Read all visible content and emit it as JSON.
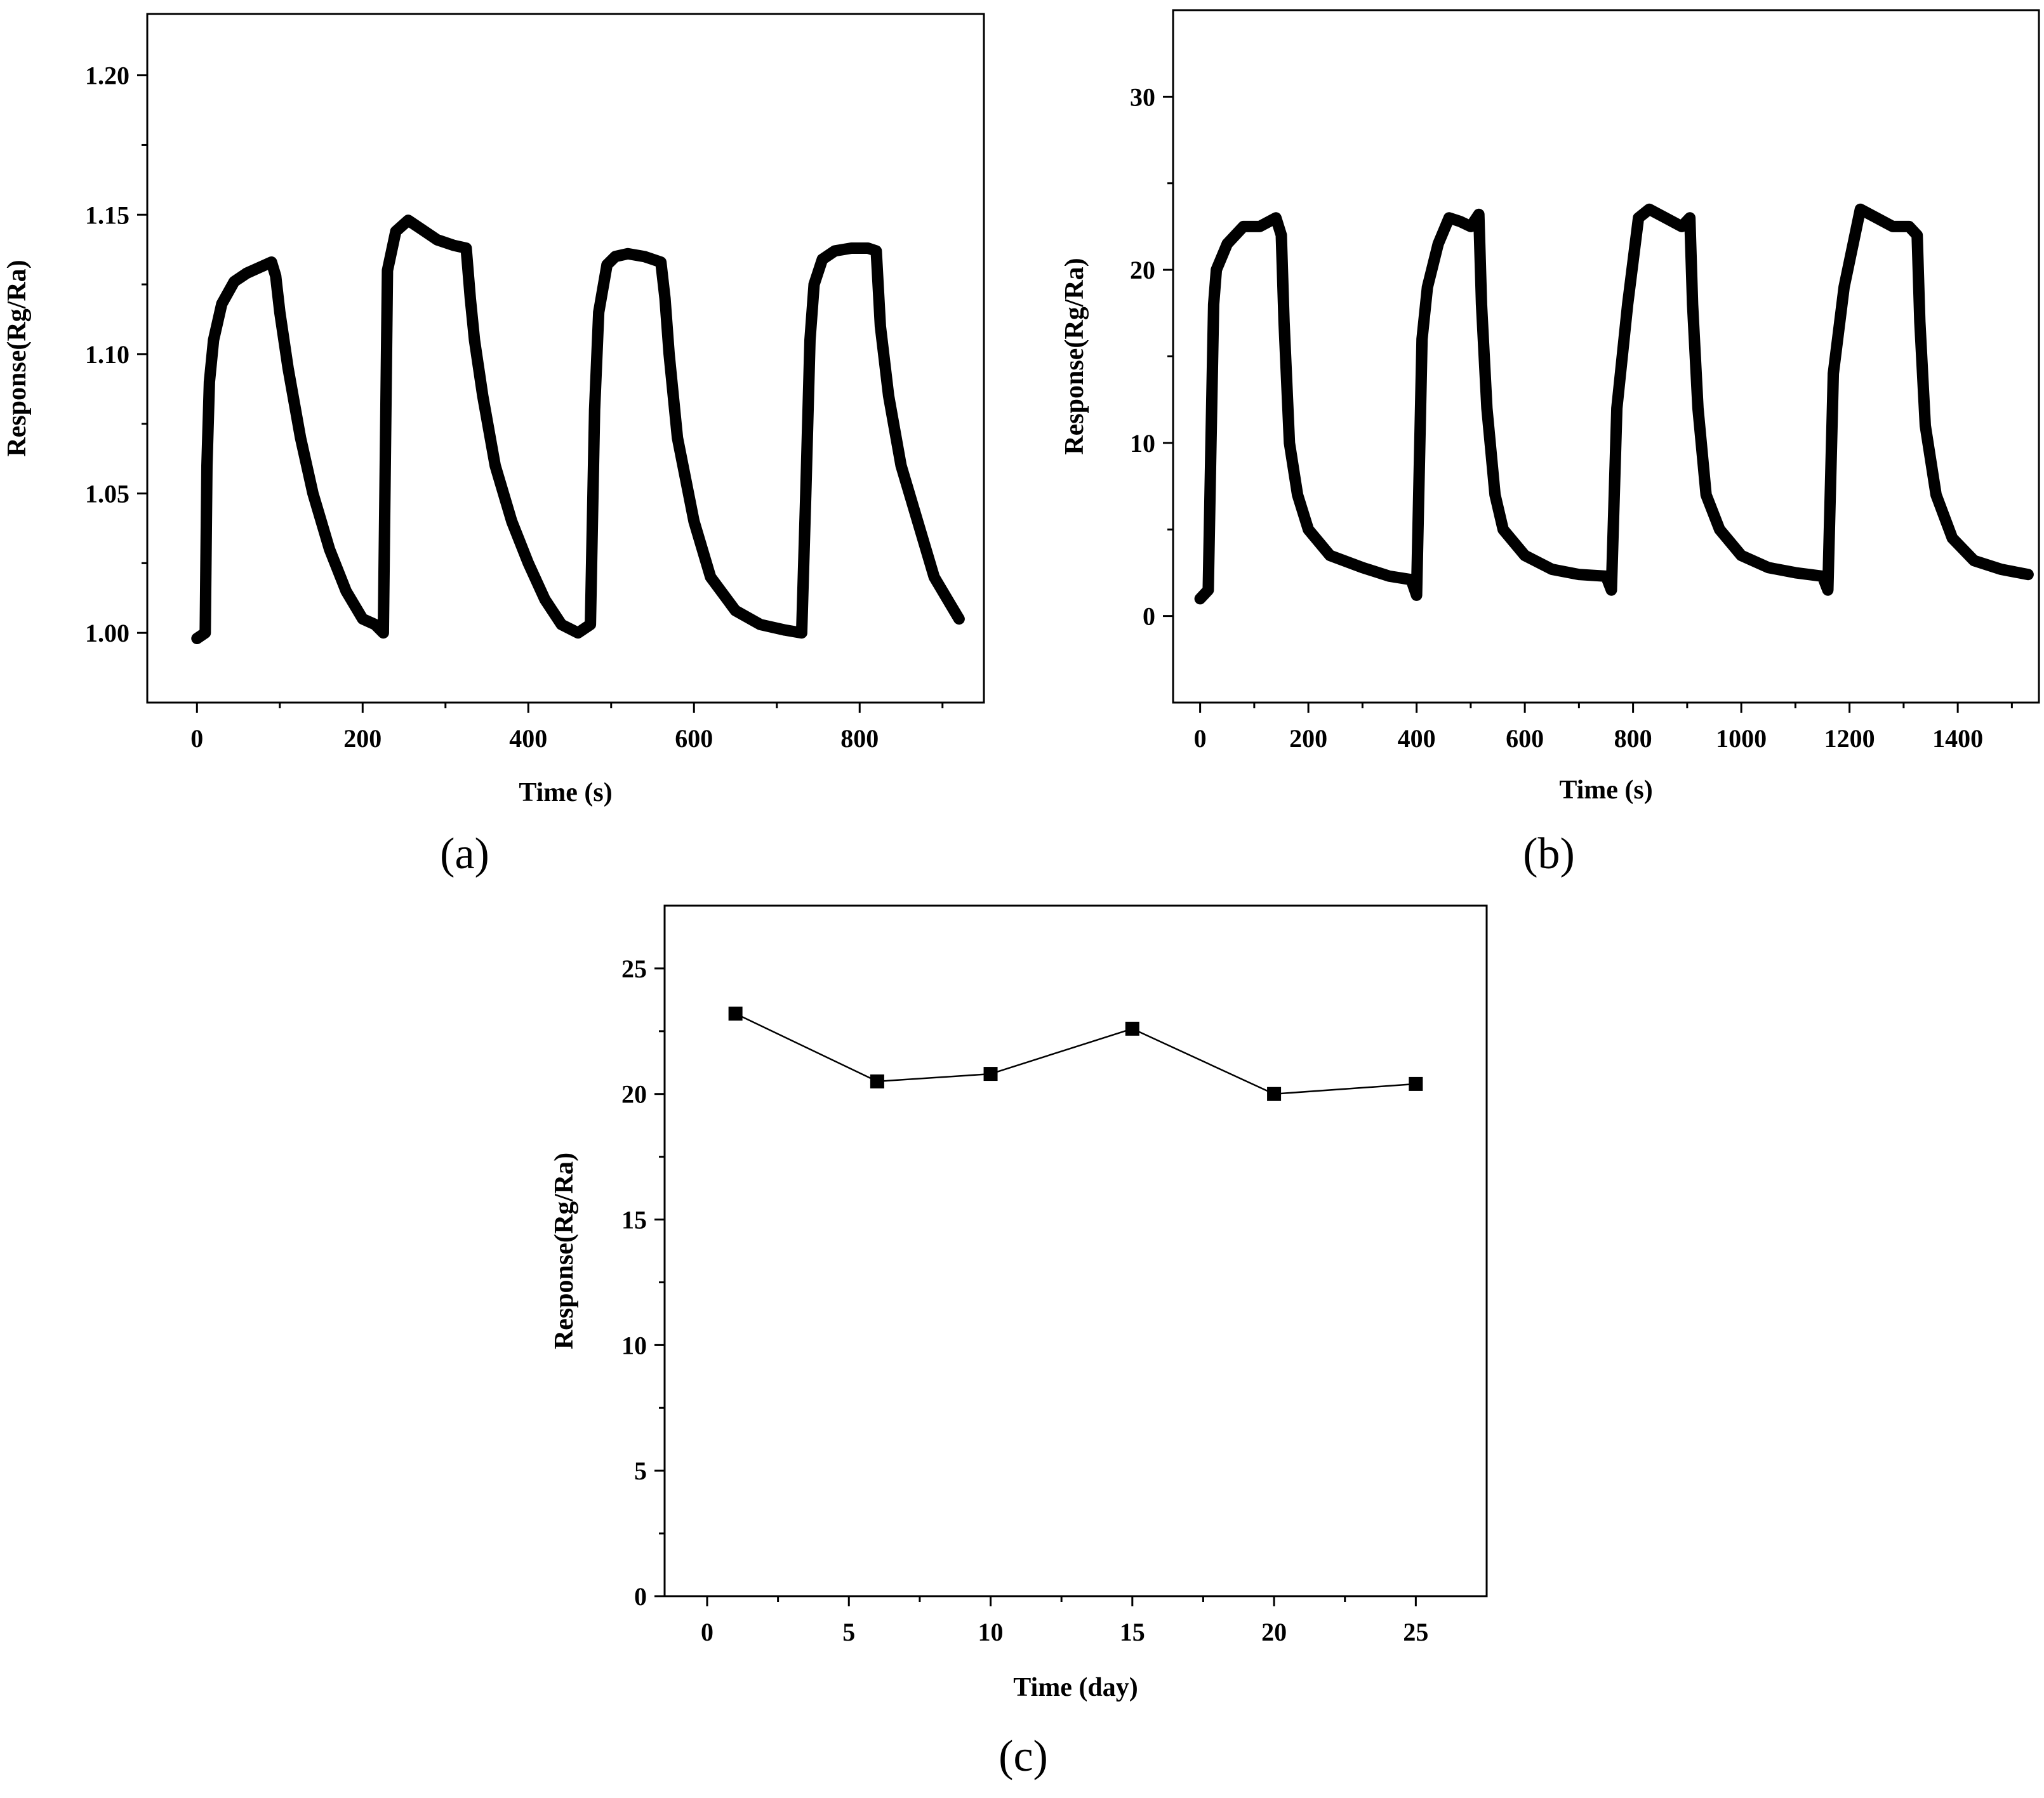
{
  "chart_data": [
    {
      "id": "a",
      "type": "line",
      "panel_label": "(a)",
      "xlabel": "Time (s)",
      "ylabel": "Response(Rg/Ra)",
      "xlim": [
        -60,
        950
      ],
      "ylim": [
        0.975,
        1.222
      ],
      "xticks": [
        0,
        200,
        400,
        600,
        800
      ],
      "xtick_labels": [
        "0",
        "200",
        "400",
        "600",
        "800"
      ],
      "yticks": [
        1.0,
        1.05,
        1.1,
        1.15,
        1.2
      ],
      "ytick_labels": [
        "1.00",
        "1.05",
        "1.10",
        "1.15",
        "1.20"
      ],
      "series": [
        {
          "name": "response",
          "x": [
            0,
            10,
            12,
            15,
            20,
            30,
            45,
            60,
            75,
            90,
            95,
            100,
            110,
            125,
            140,
            160,
            180,
            200,
            215,
            225,
            230,
            240,
            255,
            270,
            290,
            310,
            325,
            330,
            335,
            345,
            360,
            380,
            400,
            420,
            440,
            460,
            475,
            480,
            485,
            495,
            505,
            520,
            540,
            560,
            565,
            570,
            580,
            600,
            620,
            650,
            680,
            710,
            730,
            735,
            740,
            745,
            755,
            770,
            790,
            810,
            820,
            825,
            835,
            850,
            870,
            890,
            910,
            920
          ],
          "y": [
            0.998,
            1.0,
            1.06,
            1.09,
            1.105,
            1.118,
            1.126,
            1.129,
            1.131,
            1.133,
            1.128,
            1.115,
            1.095,
            1.07,
            1.05,
            1.03,
            1.015,
            1.005,
            1.003,
            1.0,
            1.13,
            1.144,
            1.148,
            1.145,
            1.141,
            1.139,
            1.138,
            1.12,
            1.105,
            1.085,
            1.06,
            1.04,
            1.025,
            1.012,
            1.003,
            1.0,
            1.003,
            1.08,
            1.115,
            1.132,
            1.135,
            1.136,
            1.135,
            1.133,
            1.12,
            1.1,
            1.07,
            1.04,
            1.02,
            1.008,
            1.003,
            1.001,
            1.0,
            1.05,
            1.105,
            1.125,
            1.134,
            1.137,
            1.138,
            1.138,
            1.137,
            1.11,
            1.085,
            1.06,
            1.04,
            1.02,
            1.01,
            1.005
          ]
        }
      ]
    },
    {
      "id": "b",
      "type": "line",
      "panel_label": "(b)",
      "xlabel": "Time (s)",
      "ylabel": "Response(Rg/Ra)",
      "xlim": [
        -50,
        1550
      ],
      "ylim": [
        -5,
        35
      ],
      "xticks": [
        0,
        200,
        400,
        600,
        800,
        1000,
        1200,
        1400
      ],
      "xtick_labels": [
        "0",
        "200",
        "400",
        "600",
        "800",
        "1000",
        "1200",
        "1400"
      ],
      "yticks": [
        0,
        10,
        20,
        30
      ],
      "ytick_labels": [
        "0",
        "10",
        "20",
        "30"
      ],
      "series": [
        {
          "name": "response",
          "x": [
            0,
            15,
            20,
            25,
            30,
            50,
            80,
            110,
            140,
            150,
            155,
            165,
            180,
            200,
            240,
            300,
            350,
            390,
            400,
            410,
            420,
            440,
            460,
            480,
            500,
            515,
            520,
            530,
            545,
            560,
            600,
            650,
            700,
            750,
            760,
            770,
            790,
            810,
            830,
            860,
            890,
            905,
            910,
            920,
            935,
            960,
            1000,
            1050,
            1100,
            1150,
            1160,
            1170,
            1190,
            1220,
            1250,
            1280,
            1310,
            1325,
            1330,
            1340,
            1360,
            1390,
            1430,
            1480,
            1530
          ],
          "y": [
            1.0,
            1.5,
            10,
            18,
            20,
            21.5,
            22.5,
            22.5,
            23,
            22,
            17,
            10,
            7,
            5,
            3.5,
            2.8,
            2.3,
            2.1,
            1.2,
            16,
            19,
            21.5,
            23,
            22.8,
            22.5,
            23.2,
            18,
            12,
            7,
            5,
            3.5,
            2.7,
            2.4,
            2.3,
            1.5,
            12,
            18,
            23,
            23.5,
            23,
            22.5,
            23,
            18,
            12,
            7,
            5,
            3.5,
            2.8,
            2.5,
            2.3,
            1.5,
            14,
            19,
            23.5,
            23,
            22.5,
            22.5,
            22,
            17,
            11,
            7,
            4.5,
            3.2,
            2.7,
            2.4
          ]
        }
      ]
    },
    {
      "id": "c",
      "type": "line",
      "panel_label": "(c)",
      "xlabel": "Time (day)",
      "ylabel": "Response(Rg/Ra)",
      "xlim": [
        -1.5,
        27.5
      ],
      "ylim": [
        0,
        27.5
      ],
      "xticks": [
        0,
        5,
        10,
        15,
        20,
        25
      ],
      "xtick_labels": [
        "0",
        "5",
        "10",
        "15",
        "20",
        "25"
      ],
      "yticks": [
        0,
        5,
        10,
        15,
        20,
        25
      ],
      "ytick_labels": [
        "0",
        "5",
        "10",
        "15",
        "20",
        "25"
      ],
      "series": [
        {
          "name": "response",
          "marker": "square",
          "x": [
            1,
            6,
            10,
            15,
            20,
            25
          ],
          "y": [
            23.2,
            20.5,
            20.8,
            22.6,
            20.0,
            20.4
          ]
        }
      ]
    }
  ]
}
